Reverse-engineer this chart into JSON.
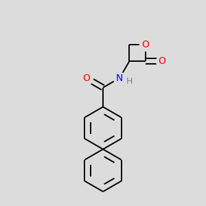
{
  "bg_color": "#dcdcdc",
  "atom_colors": {
    "N": "#0000ff",
    "O": "#ff0000",
    "H": "#6c8c6c"
  },
  "bond_color": "#000000",
  "bond_width": 1.4,
  "font_size": 10,
  "font_size_H": 9,
  "xlim": [
    -1.5,
    1.5
  ],
  "ylim": [
    -2.6,
    1.6
  ]
}
